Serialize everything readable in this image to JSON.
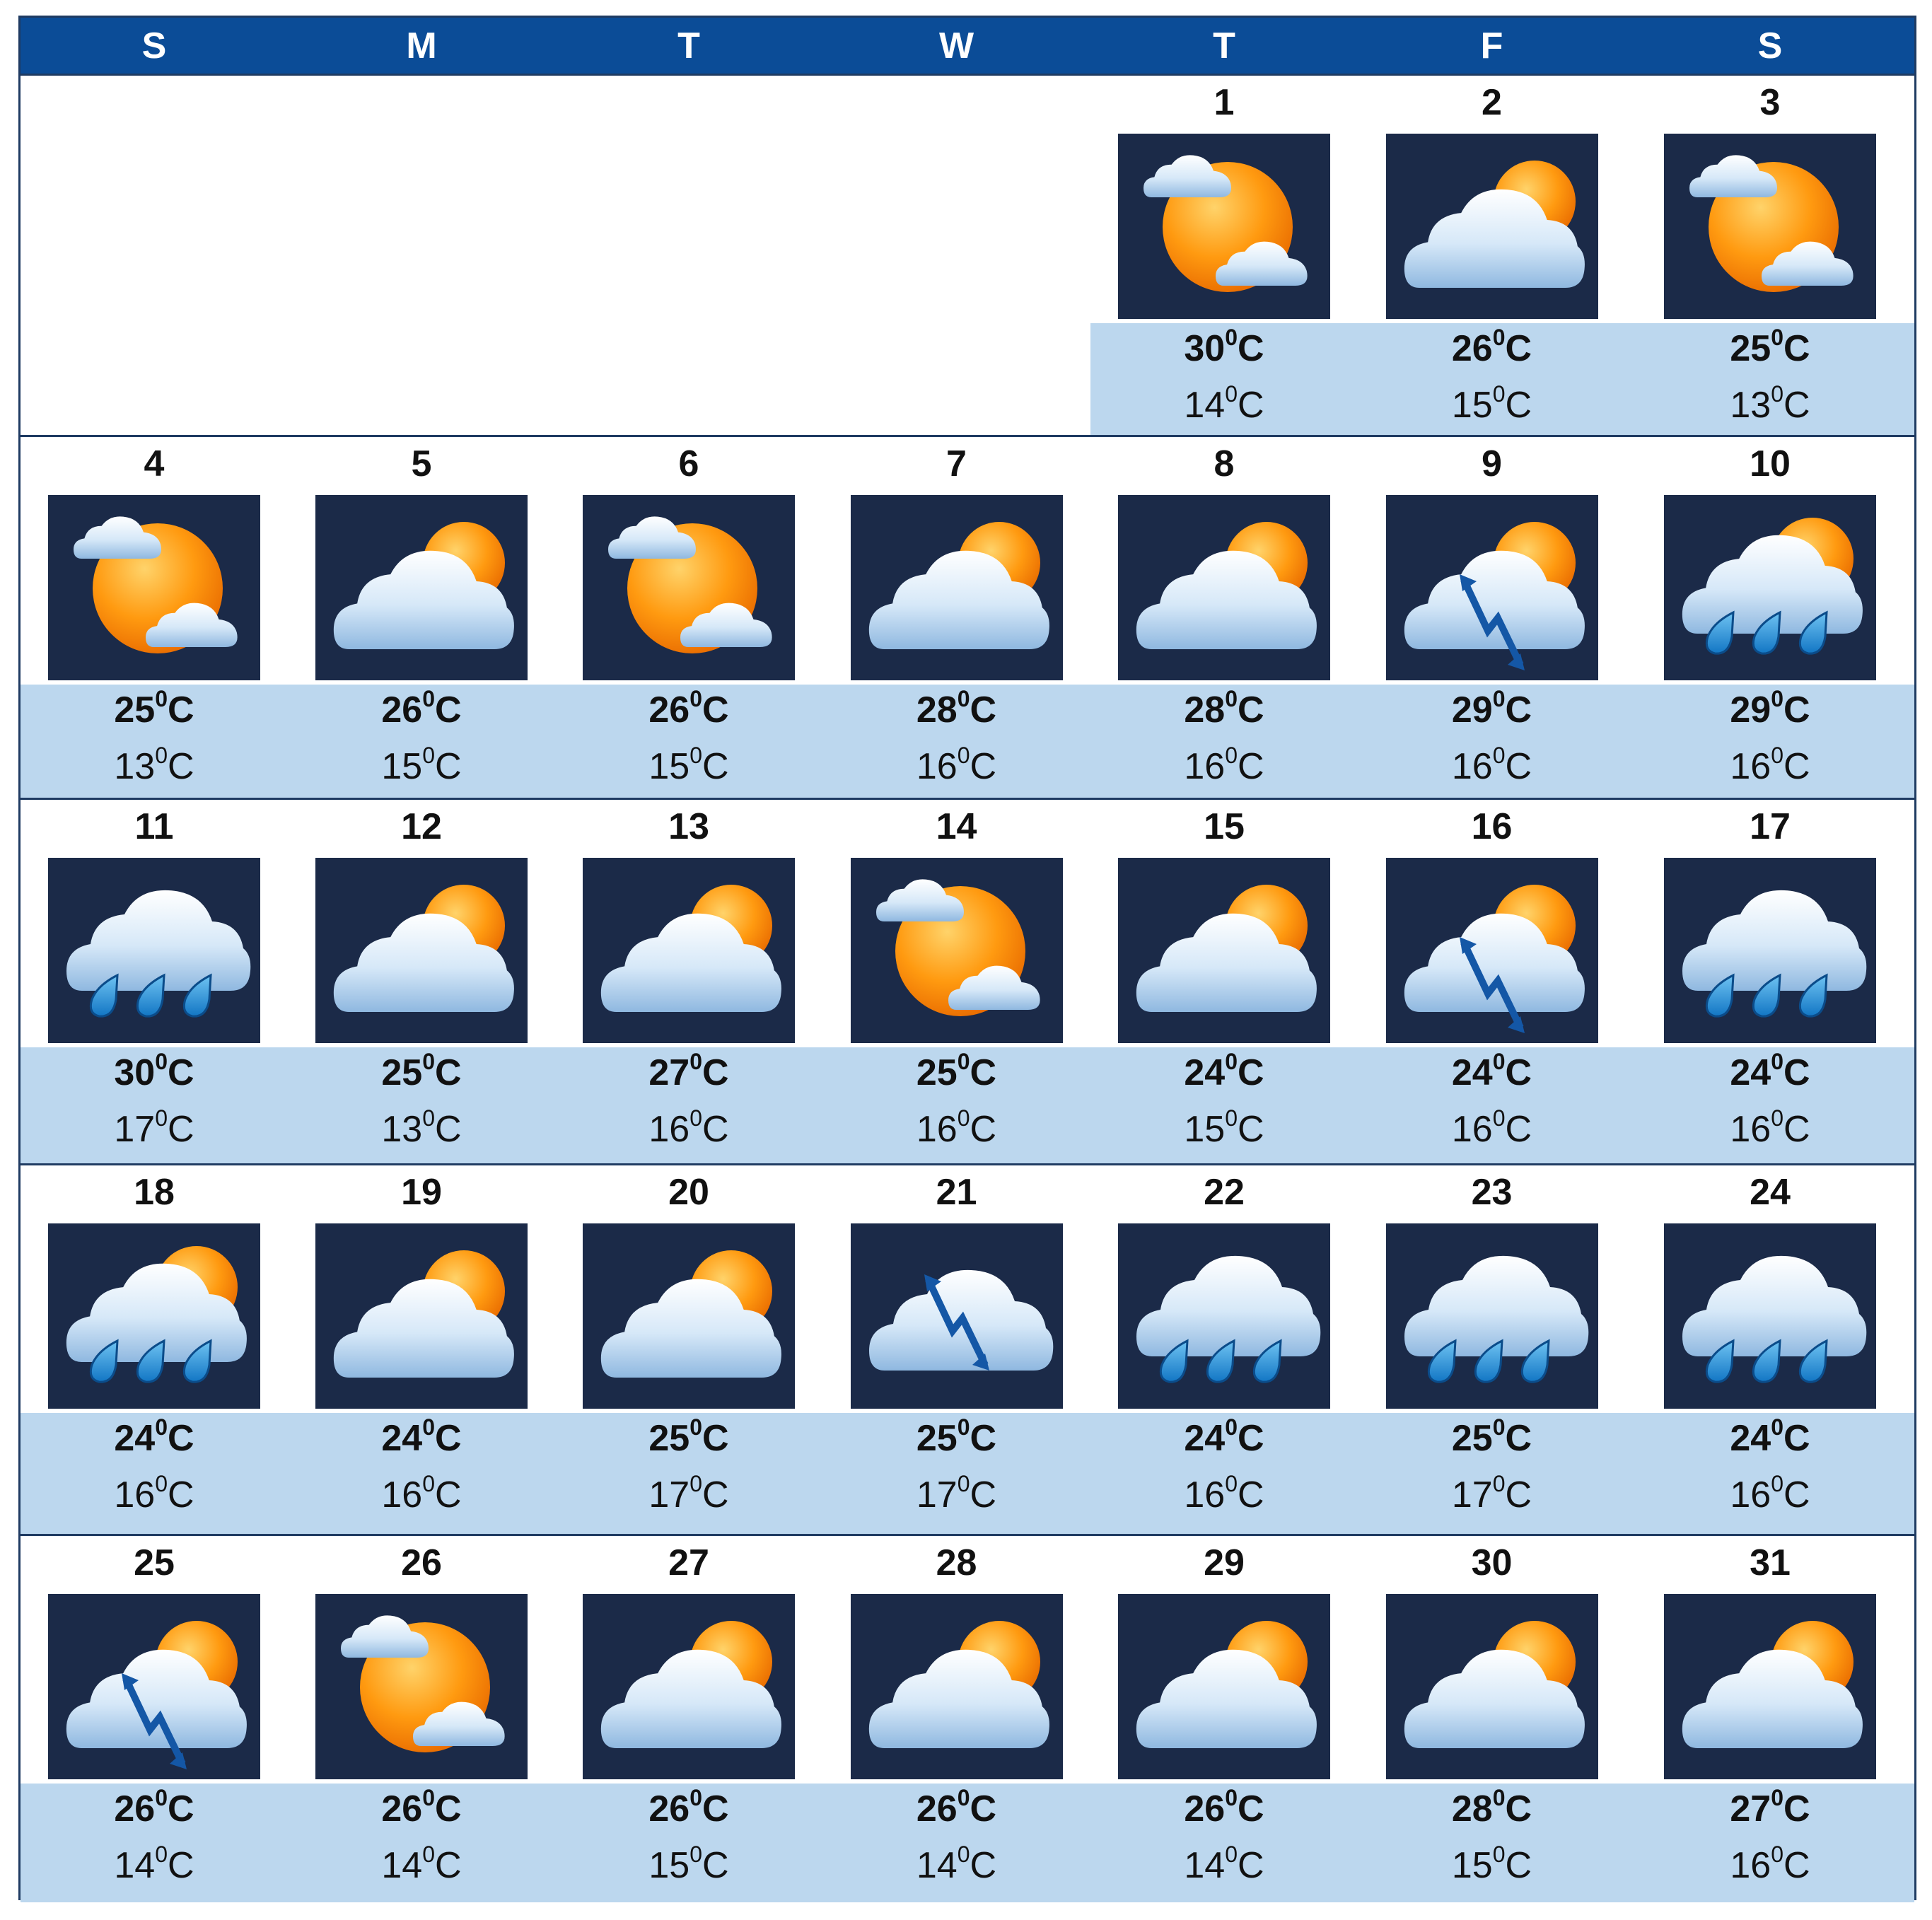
{
  "header": {
    "days": [
      "S",
      "M",
      "T",
      "W",
      "T",
      "F",
      "S"
    ]
  },
  "units": {
    "degree": "0",
    "scale": "C"
  },
  "weeks": [
    [
      null,
      null,
      null,
      null,
      {
        "day": "1",
        "icon": "sun-cloud-icon",
        "high": "30",
        "low": "14"
      },
      {
        "day": "2",
        "icon": "cloudy-icon",
        "high": "26",
        "low": "15"
      },
      {
        "day": "3",
        "icon": "sun-cloud-icon",
        "high": "25",
        "low": "13"
      }
    ],
    [
      {
        "day": "4",
        "icon": "sun-cloud-icon",
        "high": "25",
        "low": "13"
      },
      {
        "day": "5",
        "icon": "cloudy-icon",
        "high": "26",
        "low": "15"
      },
      {
        "day": "6",
        "icon": "sun-cloud-icon",
        "high": "26",
        "low": "15"
      },
      {
        "day": "7",
        "icon": "cloudy-icon",
        "high": "28",
        "low": "16"
      },
      {
        "day": "8",
        "icon": "cloudy-icon",
        "high": "28",
        "low": "16"
      },
      {
        "day": "9",
        "icon": "thunder-sun-icon",
        "high": "29",
        "low": "16"
      },
      {
        "day": "10",
        "icon": "rain-sun-icon",
        "high": "29",
        "low": "16"
      }
    ],
    [
      {
        "day": "11",
        "icon": "rain-icon",
        "high": "30",
        "low": "17"
      },
      {
        "day": "12",
        "icon": "cloudy-icon",
        "high": "25",
        "low": "13"
      },
      {
        "day": "13",
        "icon": "cloudy-icon",
        "high": "27",
        "low": "16"
      },
      {
        "day": "14",
        "icon": "sun-cloud-icon",
        "high": "25",
        "low": "16"
      },
      {
        "day": "15",
        "icon": "cloudy-icon",
        "high": "24",
        "low": "15"
      },
      {
        "day": "16",
        "icon": "thunder-sun-icon",
        "high": "24",
        "low": "16"
      },
      {
        "day": "17",
        "icon": "rain-icon",
        "high": "24",
        "low": "16"
      }
    ],
    [
      {
        "day": "18",
        "icon": "rain-sun-icon",
        "high": "24",
        "low": "16"
      },
      {
        "day": "19",
        "icon": "cloudy-icon",
        "high": "24",
        "low": "16"
      },
      {
        "day": "20",
        "icon": "cloudy-icon",
        "high": "25",
        "low": "17"
      },
      {
        "day": "21",
        "icon": "thunder-icon",
        "high": "25",
        "low": "17"
      },
      {
        "day": "22",
        "icon": "rain-icon",
        "high": "24",
        "low": "16"
      },
      {
        "day": "23",
        "icon": "rain-icon",
        "high": "25",
        "low": "17"
      },
      {
        "day": "24",
        "icon": "rain-icon",
        "high": "24",
        "low": "16"
      }
    ],
    [
      {
        "day": "25",
        "icon": "thunder-sun-icon",
        "high": "26",
        "low": "14"
      },
      {
        "day": "26",
        "icon": "sun-cloud-icon",
        "high": "26",
        "low": "14"
      },
      {
        "day": "27",
        "icon": "cloudy-icon",
        "high": "26",
        "low": "15"
      },
      {
        "day": "28",
        "icon": "cloudy-icon",
        "high": "26",
        "low": "14"
      },
      {
        "day": "29",
        "icon": "cloudy-icon",
        "high": "26",
        "low": "14"
      },
      {
        "day": "30",
        "icon": "cloudy-icon",
        "high": "28",
        "low": "15"
      },
      {
        "day": "31",
        "icon": "cloudy-icon",
        "high": "27",
        "low": "16"
      }
    ]
  ]
}
